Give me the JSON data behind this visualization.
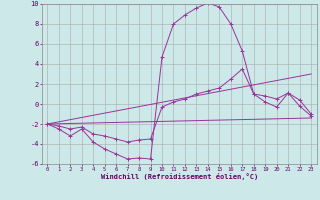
{
  "xlabel": "Windchill (Refroidissement éolien,°C)",
  "background_color": "#cce8e8",
  "grid_color": "#aaaaaa",
  "line_color": "#993399",
  "xlim": [
    -0.5,
    23.5
  ],
  "ylim": [
    -6,
    10
  ],
  "xticks": [
    0,
    1,
    2,
    3,
    4,
    5,
    6,
    7,
    8,
    9,
    10,
    11,
    12,
    13,
    14,
    15,
    16,
    17,
    18,
    19,
    20,
    21,
    22,
    23
  ],
  "yticks": [
    -6,
    -4,
    -2,
    0,
    2,
    4,
    6,
    8,
    10
  ],
  "line1_x": [
    0,
    1,
    2,
    3,
    4,
    5,
    6,
    7,
    8,
    9,
    10,
    11,
    12,
    13,
    14,
    15,
    16,
    17,
    18,
    19,
    20,
    21,
    22,
    23
  ],
  "line1_y": [
    -2.0,
    -2.5,
    -3.2,
    -2.5,
    -3.8,
    -4.5,
    -5.0,
    -5.5,
    -5.4,
    -5.5,
    4.7,
    8.0,
    8.9,
    9.6,
    10.1,
    9.7,
    8.0,
    5.3,
    1.0,
    0.2,
    -0.3,
    1.1,
    -0.2,
    -1.2
  ],
  "line2_x": [
    0,
    1,
    2,
    3,
    4,
    5,
    6,
    7,
    8,
    9,
    10,
    11,
    12,
    13,
    14,
    15,
    16,
    17,
    18,
    19,
    20,
    21,
    22,
    23
  ],
  "line2_y": [
    -2.0,
    -2.2,
    -2.5,
    -2.3,
    -3.0,
    -3.2,
    -3.5,
    -3.8,
    -3.6,
    -3.5,
    -0.3,
    0.2,
    0.5,
    1.0,
    1.3,
    1.6,
    2.5,
    3.5,
    1.0,
    0.8,
    0.5,
    1.1,
    0.4,
    -1.0
  ],
  "line3_x": [
    0,
    23
  ],
  "line3_y": [
    -2.0,
    -1.4
  ],
  "line4_x": [
    0,
    23
  ],
  "line4_y": [
    -2.0,
    3.0
  ]
}
